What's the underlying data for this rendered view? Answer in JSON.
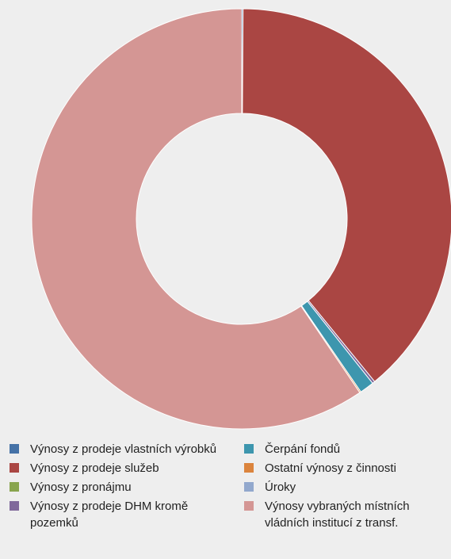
{
  "chart_data": {
    "type": "pie",
    "donut": true,
    "legend_position": "bottom",
    "slices": [
      {
        "label": "Výnosy z prodeje vlastních výrobků",
        "value": 0.1,
        "color": "#4572a7"
      },
      {
        "label": "Výnosy z prodeje služeb",
        "value": 39.0,
        "color": "#aa4643"
      },
      {
        "label": "Výnosy z pronájmu",
        "value": 0.0,
        "color": "#89a54e"
      },
      {
        "label": "Výnosy z prodeje DHM kromě pozemků",
        "value": 0.2,
        "color": "#80699b"
      },
      {
        "label": "Čerpání fondů",
        "value": 1.1,
        "color": "#3d96ae"
      },
      {
        "label": "Ostatní výnosy z činnosti",
        "value": 0.1,
        "color": "#db843d"
      },
      {
        "label": "Úroky",
        "value": 0.0,
        "color": "#92a8cd"
      },
      {
        "label": "Výnosy vybraných místních vládních institucí z transf.",
        "value": 59.5,
        "color": "#d49694"
      }
    ]
  },
  "legend": {
    "column_1": [
      {
        "label": "Výnosy z prodeje vlastních výrobků",
        "color": "#4572a7"
      },
      {
        "label": "Výnosy z prodeje služeb",
        "color": "#aa4643"
      },
      {
        "label": "Výnosy z pronájmu",
        "color": "#89a54e"
      },
      {
        "label": "Výnosy z prodeje DHM kromě pozemků",
        "color": "#80699b"
      }
    ],
    "column_2": [
      {
        "label": "Čerpání fondů",
        "color": "#3d96ae"
      },
      {
        "label": "Ostatní výnosy z činnosti",
        "color": "#db843d"
      },
      {
        "label": "Úroky",
        "color": "#92a8cd"
      },
      {
        "label": "Výnosy vybraných místních vládních institucí z transf.",
        "color": "#d49694"
      }
    ]
  }
}
